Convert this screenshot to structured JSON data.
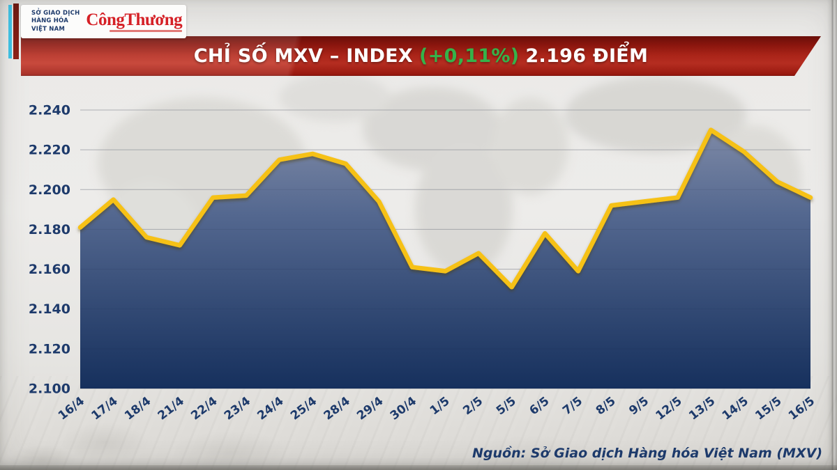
{
  "header": {
    "exchange": {
      "logo_icon": "mxv-chevrons-logo",
      "line1": "SỞ GIAO DỊCH",
      "line2": "HÀNG HÓA",
      "line3": "VIỆT NAM"
    },
    "newspaper": {
      "wordmark": "CôngThương"
    }
  },
  "banner": {
    "title_main": "CHỈ SỐ MXV – INDEX",
    "title_change": "(+0,11%)",
    "title_value": "2.196 ĐIỂM",
    "change_color": "#35b34a",
    "ribbon_color": "#b52a1d"
  },
  "chart_data": {
    "type": "area",
    "title": "CHỈ SỐ MXV – INDEX (+0,11%) 2.196 ĐIỂM",
    "x": [
      "16/4",
      "17/4",
      "18/4",
      "21/4",
      "22/4",
      "23/4",
      "24/4",
      "25/4",
      "28/4",
      "29/4",
      "30/4",
      "1/5",
      "2/5",
      "5/5",
      "6/5",
      "7/5",
      "8/5",
      "9/5",
      "12/5",
      "13/5",
      "14/5",
      "15/5",
      "16/5"
    ],
    "values": [
      2.181,
      2.195,
      2.176,
      2.172,
      2.196,
      2.197,
      2.215,
      2.218,
      2.213,
      2.194,
      2.161,
      2.159,
      2.168,
      2.151,
      2.178,
      2.159,
      2.192,
      2.194,
      2.196,
      2.23,
      2.219,
      2.204,
      2.196
    ],
    "ylim": [
      2.1,
      2.24
    ],
    "y_ticks": [
      2.1,
      2.12,
      2.14,
      2.16,
      2.18,
      2.2,
      2.22,
      2.24
    ],
    "xlabel": "",
    "ylabel": "",
    "grid": true,
    "legend": "none",
    "line_color": "#f6c113",
    "area_gradient_top": "#8791ab",
    "area_gradient_mid": "#53678f",
    "area_gradient_bottom": "#16305d",
    "label_color": "#1d3a6b",
    "grid_color": "#9a9ca3"
  },
  "source": {
    "text": "Nguồn: Sở Giao dịch Hàng hóa Việt Nam (MXV)"
  }
}
